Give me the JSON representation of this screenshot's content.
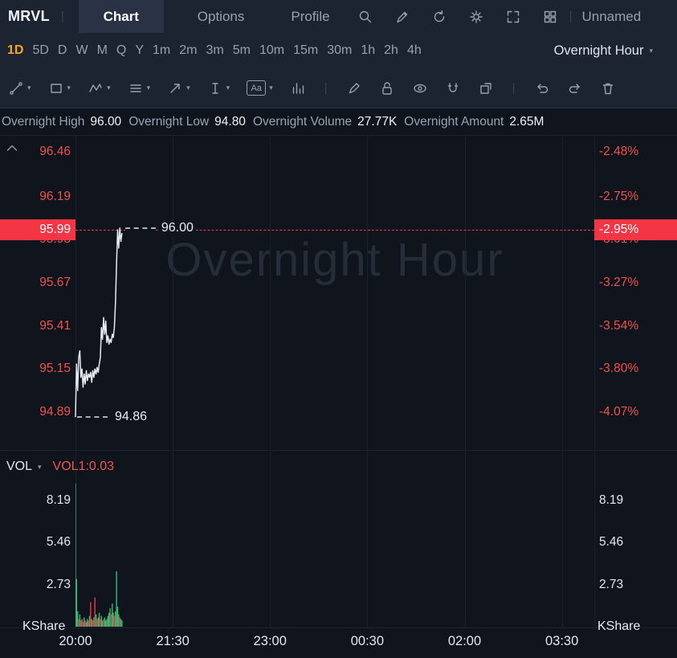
{
  "ui": {
    "caret": "▾",
    "separator": "|",
    "aa": "Aa",
    "kshare_label": "KShare"
  },
  "colors": {
    "accent_orange": "#f5a623",
    "axis_red": "#f1524d",
    "badge_red": "#f23645",
    "up_green": "#3bb873",
    "down_red": "#f23645",
    "text_white": "#e9ecf2"
  },
  "topbar": {
    "symbol": "MRVL",
    "tabs": [
      {
        "label": "Chart",
        "active": true
      },
      {
        "label": "Options",
        "active": false
      },
      {
        "label": "Profile",
        "active": false
      }
    ],
    "icons": [
      "screener-icon",
      "annotate-icon",
      "refresh-icon",
      "settings-icon",
      "fullscreen-icon",
      "layout-grid-icon"
    ],
    "right_label": "Unnamed"
  },
  "timeframes": {
    "items": [
      "1D",
      "5D",
      "D",
      "W",
      "M",
      "Q",
      "Y",
      "1m",
      "2m",
      "3m",
      "5m",
      "10m",
      "15m",
      "30m",
      "1h",
      "2h",
      "4h"
    ],
    "active": "1D",
    "session_selector": "Overnight Hour"
  },
  "toolbar_icons": [
    "trendline-tool",
    "rectangle-tool",
    "wave-pattern-tool",
    "parallel-lines-tool",
    "arrow-tool",
    "text-cursor-tool",
    "text-label-tool",
    "bar-pattern-tool",
    "brush-tool",
    "lock-tool",
    "visibility-tool",
    "magnet-tool",
    "popout-tool",
    "undo",
    "redo",
    "delete"
  ],
  "info": {
    "pairs": [
      {
        "label": "Overnight High",
        "value": "96.00"
      },
      {
        "label": "Overnight Low",
        "value": "94.80"
      },
      {
        "label": "Overnight Volume",
        "value": "27.77K"
      },
      {
        "label": "Overnight Amount",
        "value": "2.65M"
      }
    ]
  },
  "watermark": "Overnight Hour",
  "chart_data": {
    "type": "line",
    "symbol": "MRVL",
    "session": "Overnight Hour",
    "time_scale": {
      "total_minutes": 480,
      "ticks": [
        {
          "label": "20:00",
          "min": 0
        },
        {
          "label": "21:30",
          "min": 90
        },
        {
          "label": "23:00",
          "min": 180
        },
        {
          "label": "00:30",
          "min": 270
        },
        {
          "label": "02:00",
          "min": 360
        },
        {
          "label": "03:30",
          "min": 450
        }
      ]
    },
    "price_scale": {
      "min": 94.662,
      "max": 96.552
    },
    "price_ticks": [
      {
        "price": "96.46",
        "pct": "-2.48%",
        "value": 96.46
      },
      {
        "price": "96.19",
        "pct": "-2.75%",
        "value": 96.19
      },
      {
        "price": "95.93",
        "pct": "-3.01%",
        "value": 95.93,
        "partially_hidden": true
      },
      {
        "price": "95.67",
        "pct": "-3.27%",
        "value": 95.67
      },
      {
        "price": "95.41",
        "pct": "-3.54%",
        "value": 95.41
      },
      {
        "price": "95.15",
        "pct": "-3.80%",
        "value": 95.15
      },
      {
        "price": "94.89",
        "pct": "-4.07%",
        "value": 94.89
      }
    ],
    "current": {
      "price_label": "95.99",
      "pct_label": "-2.95%",
      "value": 95.99
    },
    "high_marker": {
      "label": "96.00",
      "value": 96.0
    },
    "low_marker": {
      "label": "94.86",
      "value": 94.86
    },
    "series": {
      "t": [
        0,
        1,
        2,
        3,
        4,
        5,
        6,
        7,
        8,
        9,
        10,
        11,
        12,
        13,
        14,
        15,
        16,
        17,
        18,
        19,
        20,
        21,
        22,
        23,
        24,
        25,
        26,
        27,
        28,
        29,
        30,
        31,
        32,
        33,
        34,
        35,
        36,
        37,
        38,
        39,
        40,
        41,
        42,
        43
      ],
      "price": [
        94.86,
        95.18,
        95.02,
        95.22,
        95.26,
        95.1,
        95.15,
        95.04,
        95.12,
        95.06,
        95.14,
        95.08,
        95.12,
        95.1,
        95.13,
        95.07,
        95.14,
        95.1,
        95.15,
        95.12,
        95.16,
        95.13,
        95.18,
        95.22,
        95.4,
        95.33,
        95.46,
        95.36,
        95.44,
        95.31,
        95.35,
        95.3,
        95.33,
        95.31,
        95.36,
        95.34,
        95.4,
        95.55,
        95.78,
        95.99,
        95.88,
        96.0,
        95.92,
        95.97
      ]
    },
    "volume": {
      "indicator": {
        "name": "VOL",
        "value_label": "VOL1:0.03"
      },
      "ticks": [
        {
          "label": "8.19",
          "value": 8.19
        },
        {
          "label": "5.46",
          "value": 5.46
        },
        {
          "label": "2.73",
          "value": 2.73
        }
      ],
      "ylim": 9.4,
      "bars": [
        {
          "t": 0,
          "v": 9.3,
          "dir": "up"
        },
        {
          "t": 1,
          "v": 3.1,
          "dir": "up"
        },
        {
          "t": 2,
          "v": 1.0,
          "dir": "up"
        },
        {
          "t": 3,
          "v": 0.5,
          "dir": "down"
        },
        {
          "t": 4,
          "v": 0.8,
          "dir": "up"
        },
        {
          "t": 5,
          "v": 0.4,
          "dir": "down"
        },
        {
          "t": 6,
          "v": 0.5,
          "dir": "up"
        },
        {
          "t": 7,
          "v": 0.3,
          "dir": "down"
        },
        {
          "t": 8,
          "v": 0.6,
          "dir": "up"
        },
        {
          "t": 9,
          "v": 0.4,
          "dir": "down"
        },
        {
          "t": 10,
          "v": 0.3,
          "dir": "up"
        },
        {
          "t": 11,
          "v": 0.5,
          "dir": "up"
        },
        {
          "t": 12,
          "v": 0.4,
          "dir": "down"
        },
        {
          "t": 13,
          "v": 0.7,
          "dir": "up"
        },
        {
          "t": 14,
          "v": 1.6,
          "dir": "down"
        },
        {
          "t": 15,
          "v": 0.5,
          "dir": "up"
        },
        {
          "t": 16,
          "v": 0.4,
          "dir": "down"
        },
        {
          "t": 17,
          "v": 0.6,
          "dir": "up"
        },
        {
          "t": 18,
          "v": 1.9,
          "dir": "down"
        },
        {
          "t": 19,
          "v": 0.8,
          "dir": "up"
        },
        {
          "t": 20,
          "v": 0.5,
          "dir": "down"
        },
        {
          "t": 21,
          "v": 0.6,
          "dir": "up"
        },
        {
          "t": 22,
          "v": 0.9,
          "dir": "up"
        },
        {
          "t": 23,
          "v": 0.5,
          "dir": "down"
        },
        {
          "t": 24,
          "v": 0.7,
          "dir": "up"
        },
        {
          "t": 25,
          "v": 0.4,
          "dir": "up"
        },
        {
          "t": 26,
          "v": 0.5,
          "dir": "down"
        },
        {
          "t": 27,
          "v": 0.6,
          "dir": "up"
        },
        {
          "t": 28,
          "v": 0.4,
          "dir": "up"
        },
        {
          "t": 29,
          "v": 0.5,
          "dir": "up"
        },
        {
          "t": 30,
          "v": 0.7,
          "dir": "up"
        },
        {
          "t": 31,
          "v": 0.9,
          "dir": "up"
        },
        {
          "t": 32,
          "v": 1.2,
          "dir": "up"
        },
        {
          "t": 33,
          "v": 0.8,
          "dir": "down"
        },
        {
          "t": 34,
          "v": 1.5,
          "dir": "up"
        },
        {
          "t": 35,
          "v": 0.9,
          "dir": "up"
        },
        {
          "t": 36,
          "v": 0.7,
          "dir": "down"
        },
        {
          "t": 37,
          "v": 1.0,
          "dir": "up"
        },
        {
          "t": 38,
          "v": 3.6,
          "dir": "up"
        },
        {
          "t": 39,
          "v": 1.3,
          "dir": "up"
        },
        {
          "t": 40,
          "v": 0.8,
          "dir": "up"
        },
        {
          "t": 41,
          "v": 0.6,
          "dir": "down"
        },
        {
          "t": 42,
          "v": 0.5,
          "dir": "up"
        },
        {
          "t": 43,
          "v": 0.4,
          "dir": "up"
        }
      ]
    }
  }
}
